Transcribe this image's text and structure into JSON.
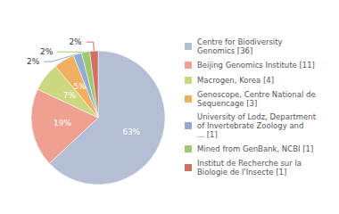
{
  "chart_data": {
    "type": "pie",
    "categories": [
      "Centre for Biodiversity\nGenomics [36]",
      "Beijing Genomics Institute [11]",
      "Macrogen, Korea [4]",
      "Genoscope, Centre National de\nSequencage [3]",
      "University of Lodz, Department\nof Invertebrate Zoology and\n... [1]",
      "Mined from GenBank, NCBI [1]",
      "Institut de Recherche sur la\nBiologie de l'Insecte [1]"
    ],
    "values": [
      63,
      19,
      7,
      5,
      2,
      2,
      2
    ],
    "value_labels": [
      "63%",
      "19%",
      "7%",
      "5%",
      "2%",
      "2%",
      "2%"
    ],
    "colors": [
      "#b4bfd6",
      "#f0a090",
      "#ccd880",
      "#f0b060",
      "#90acd0",
      "#a0c870",
      "#d07060"
    ],
    "data_labels": true,
    "legend": "right"
  }
}
